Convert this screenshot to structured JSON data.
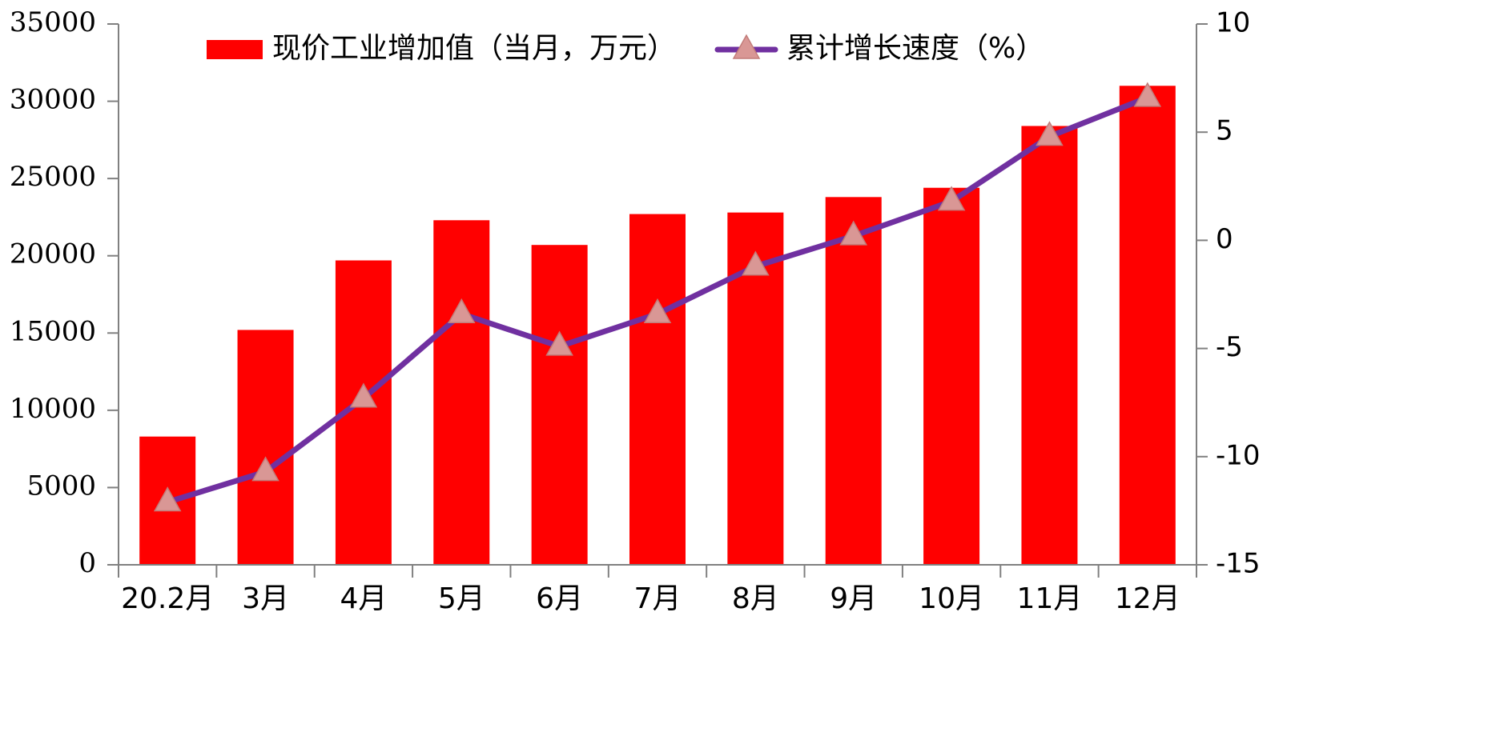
{
  "chart_data": {
    "type": "bar",
    "categories": [
      "20.2月",
      "3月",
      "4月",
      "5月",
      "6月",
      "7月",
      "8月",
      "9月",
      "10月",
      "11月",
      "12月"
    ],
    "series": [
      {
        "name": "现价工业增加值（当月，万元）",
        "type": "bar",
        "axis": "left",
        "values": [
          8300,
          15200,
          19700,
          22300,
          20700,
          22700,
          22800,
          23800,
          24400,
          28400,
          31000
        ]
      },
      {
        "name": "累计增长速度（%）",
        "type": "line",
        "axis": "right",
        "values": [
          -12.1,
          -10.7,
          -7.3,
          -3.4,
          -4.9,
          -3.4,
          -1.2,
          0.2,
          1.8,
          4.8,
          6.6
        ]
      }
    ],
    "left_axis": {
      "ylim": [
        0,
        35000
      ],
      "ticks": [
        "0",
        "5000",
        "10000",
        "15000",
        "20000",
        "25000",
        "30000",
        "35000"
      ]
    },
    "right_axis": {
      "ylim": [
        -15,
        10
      ],
      "ticks": [
        "-15",
        "-10",
        "-5",
        "0",
        "5",
        "10"
      ]
    },
    "legend_position": "top",
    "grid": false,
    "colors": {
      "bar": "#FF0000",
      "line": "#7030A0",
      "marker": "#D99795"
    }
  }
}
